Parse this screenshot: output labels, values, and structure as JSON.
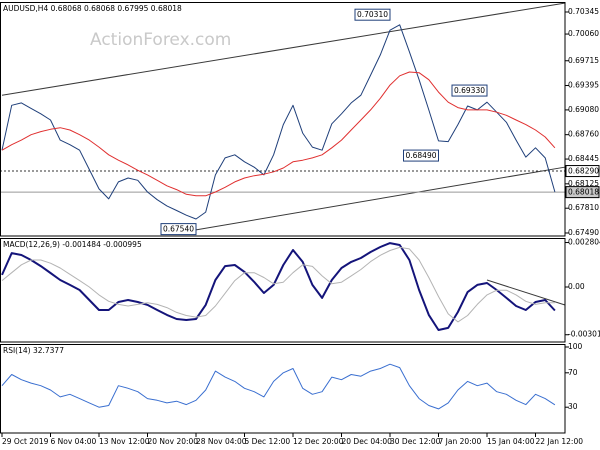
{
  "chart_data": [
    {
      "type": "line",
      "title": "AUDUSD,H4  0.68068 0.68068 0.67995 0.68018",
      "watermark": "ActionForex.com",
      "xlim": [
        0,
        57
      ],
      "ylim": [
        0.67451,
        0.70474
      ],
      "yticks": [
        0.70345,
        {
          "value": 0.7006,
          "label": "0.70060"
        },
        0.69715,
        0.69395,
        {
          "value": 0.6908,
          "label": "0.69080"
        },
        {
          "value": 0.6876,
          "label": "0.68760"
        },
        0.68445,
        0.68125,
        {
          "value": 0.6781,
          "label": "0.67810"
        },
        {
          "value": 0.6749,
          "label": "0.67490"
        }
      ],
      "series": [
        {
          "color": "#1f3f7a",
          "width": 1,
          "values": [
            0.6856,
            0.6914,
            0.6917,
            0.691,
            0.6903,
            0.6895,
            0.6869,
            0.6863,
            0.6856,
            0.6831,
            0.6806,
            0.6793,
            0.6815,
            0.682,
            0.6817,
            0.6802,
            0.6792,
            0.6784,
            0.6778,
            0.6772,
            0.6767,
            0.6776,
            0.6824,
            0.6846,
            0.685,
            0.6841,
            0.6834,
            0.6824,
            0.685,
            0.6889,
            0.6914,
            0.6878,
            0.686,
            0.6856,
            0.689,
            0.6903,
            0.6917,
            0.6927,
            0.6953,
            0.6979,
            0.7011,
            0.7018,
            0.6983,
            0.6947,
            0.6908,
            0.6868,
            0.6867,
            0.6889,
            0.6913,
            0.6908,
            0.6918,
            0.6905,
            0.6892,
            0.6869,
            0.6847,
            0.6859,
            0.6846,
            0.6802
          ]
        },
        {
          "color": "#e03030",
          "width": 1,
          "values": [
            0.6856,
            0.6863,
            0.6869,
            0.6876,
            0.688,
            0.6883,
            0.6885,
            0.6882,
            0.6876,
            0.6869,
            0.686,
            0.685,
            0.6843,
            0.6837,
            0.683,
            0.6824,
            0.6817,
            0.681,
            0.6805,
            0.6799,
            0.6797,
            0.6797,
            0.6802,
            0.6808,
            0.6815,
            0.682,
            0.6823,
            0.6825,
            0.6828,
            0.6833,
            0.6841,
            0.6843,
            0.6846,
            0.685,
            0.6859,
            0.6869,
            0.6882,
            0.6895,
            0.6908,
            0.6923,
            0.694,
            0.6952,
            0.6957,
            0.6956,
            0.6947,
            0.6931,
            0.6918,
            0.6911,
            0.6908,
            0.6908,
            0.6908,
            0.6905,
            0.6901,
            0.6895,
            0.6889,
            0.6882,
            0.6873,
            0.6859
          ]
        }
      ],
      "trendlines": [
        {
          "color": "#3a3a3a",
          "x": [
            0,
            58
          ],
          "values": [
            0.6927,
            0.7046
          ]
        },
        {
          "color": "#3a3a3a",
          "x": [
            20,
            58
          ],
          "values": [
            0.6753,
            0.6834
          ]
        }
      ],
      "price_lines": [
        {
          "value": 0.6829,
          "label": "0.68290",
          "style": "dashed"
        },
        {
          "value": 0.68018,
          "label": "0.68018",
          "style": "solid"
        }
      ],
      "annotations": [
        {
          "x": 40,
          "value": 0.7031,
          "label": "0.70310"
        },
        {
          "x": 50,
          "value": 0.6933,
          "label": "0.69330"
        },
        {
          "x": 45,
          "value": 0.6849,
          "label": "0.68490"
        },
        {
          "x": 20,
          "value": 0.6754,
          "label": "0.67540"
        }
      ]
    },
    {
      "type": "line",
      "title": "MACD(12,26,9) -0.001484 -0.000995",
      "xlim": [
        0,
        57
      ],
      "ylim": [
        -0.00347,
        0.00309
      ],
      "yticks": [
        0.002804,
        {
          "value": 0,
          "label": "0.00"
        },
        -0.003012
      ],
      "series": [
        {
          "color": "#14147a",
          "width": 2,
          "values": [
            0.00076,
            0.00214,
            0.00202,
            0.0017,
            0.00132,
            0.00088,
            0.00044,
            0.00013,
            -0.00019,
            -0.00082,
            -0.00145,
            -0.00145,
            -0.00095,
            -0.00082,
            -0.00095,
            -0.00113,
            -0.00145,
            -0.00176,
            -0.00202,
            -0.00208,
            -0.00202,
            -0.00113,
            0.00044,
            0.00132,
            0.00139,
            0.00095,
            0.00032,
            -0.00038,
            0.00013,
            0.00139,
            0.00233,
            0.00158,
            0.00013,
            -0.00069,
            0.00044,
            0.0012,
            0.00158,
            0.00183,
            0.00221,
            0.00252,
            0.00277,
            0.00265,
            0.0017,
            -0.00019,
            -0.00176,
            -0.00271,
            -0.00258,
            -0.00158,
            -0.00032,
            0.00013,
            0.00025,
            -0.00019,
            -0.00069,
            -0.0012,
            -0.00145,
            -0.00095,
            -0.00082,
            -0.00148
          ]
        },
        {
          "color": "#b4b4b4",
          "width": 1,
          "values": [
            0.0004,
            0.0009,
            0.0014,
            0.0017,
            0.0017,
            0.0015,
            0.0012,
            0.0008,
            0.0004,
            0,
            -0.0005,
            -0.0009,
            -0.0011,
            -0.0012,
            -0.0011,
            -0.001,
            -0.0011,
            -0.0013,
            -0.0016,
            -0.0018,
            -0.0019,
            -0.0018,
            -0.0012,
            -0.0004,
            0.0004,
            0.0009,
            0.0009,
            0.0006,
            0.0002,
            0.0003,
            0.0009,
            0.0014,
            0.0013,
            0.0007,
            0.0002,
            0.0003,
            0.0007,
            0.0011,
            0.0016,
            0.002,
            0.0023,
            0.0025,
            0.0024,
            0.0017,
            0.0006,
            -0.0006,
            -0.0017,
            -0.0022,
            -0.0018,
            -0.0011,
            -0.0005,
            -0.0002,
            -0.0002,
            -0.0005,
            -0.0009,
            -0.0011,
            -0.001,
            -0.001
          ]
        }
      ],
      "trendlines": [
        {
          "color": "#3a3a3a",
          "x": [
            50,
            58
          ],
          "values": [
            0.00044,
            -0.00113
          ]
        }
      ]
    },
    {
      "type": "line",
      "title": "RSI(14) 32.7377",
      "xlim": [
        0,
        57
      ],
      "ylim": [
        0,
        103.5
      ],
      "yticks": [
        100,
        70,
        30
      ],
      "series": [
        {
          "color": "#3a6fd0",
          "width": 1,
          "values": [
            55,
            68,
            62,
            58,
            55,
            50,
            42,
            45,
            40,
            35,
            30,
            32,
            55,
            52,
            48,
            40,
            38,
            35,
            37,
            33,
            38,
            50,
            72,
            65,
            60,
            52,
            48,
            42,
            60,
            70,
            75,
            52,
            45,
            48,
            65,
            62,
            68,
            66,
            72,
            75,
            80,
            76,
            55,
            40,
            32,
            28,
            35,
            50,
            60,
            55,
            58,
            48,
            45,
            38,
            33,
            45,
            40,
            32.7377
          ]
        }
      ],
      "xticks": [
        {
          "value": 0,
          "label": "29 Oct 2019"
        },
        {
          "value": 5,
          "label": "6 Nov 04:00"
        },
        {
          "value": 10,
          "label": "13 Nov 12:00"
        },
        {
          "value": 15,
          "label": "20 Nov 20:00"
        },
        {
          "value": 20,
          "label": "28 Nov 04:00"
        },
        {
          "value": 25,
          "label": "5 Dec 12:00"
        },
        {
          "value": 30,
          "label": "12 Dec 20:00"
        },
        {
          "value": 35,
          "label": "20 Dec 04:00"
        },
        {
          "value": 40,
          "label": "30 Dec 12:00"
        },
        {
          "value": 45,
          "label": "7 Jan 20:00"
        },
        {
          "value": 50,
          "label": "15 Jan 04:00"
        },
        {
          "value": 55,
          "label": "22 Jan 12:00"
        }
      ]
    }
  ]
}
